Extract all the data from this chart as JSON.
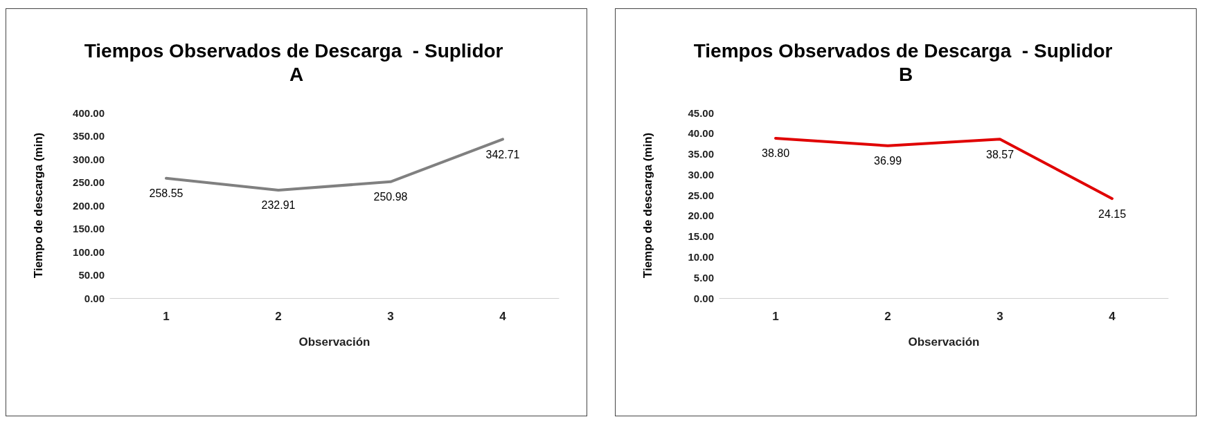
{
  "chart_data": [
    {
      "type": "line",
      "title": "Tiempos Observados de Descarga  - Suplidor A",
      "xlabel": "Observación",
      "ylabel": "Tiempo de descarga (min)",
      "categories": [
        "1",
        "2",
        "3",
        "4"
      ],
      "series": [
        {
          "color": "#808080",
          "values": [
            258.55,
            232.91,
            250.98,
            342.71
          ],
          "value_labels": [
            "258.55",
            "232.91",
            "250.98",
            "342.71"
          ]
        }
      ],
      "ylim": [
        0,
        400
      ],
      "yticks": [
        {
          "value": 0,
          "label": "0.00"
        },
        {
          "value": 50,
          "label": "50.00"
        },
        {
          "value": 100,
          "label": "100.00"
        },
        {
          "value": 150,
          "label": "150.00"
        },
        {
          "value": 200,
          "label": "200.00"
        },
        {
          "value": 250,
          "label": "250.00"
        },
        {
          "value": 300,
          "label": "300.00"
        },
        {
          "value": 350,
          "label": "350.00"
        },
        {
          "value": 400,
          "label": "400.00"
        }
      ],
      "grid": false,
      "marker": "none",
      "line_style": "solid"
    },
    {
      "type": "line",
      "title": "Tiempos Observados de Descarga  - Suplidor B",
      "xlabel": "Observación",
      "ylabel": "Tiempo de descarga (min)",
      "categories": [
        "1",
        "2",
        "3",
        "4"
      ],
      "series": [
        {
          "color": "#e00000",
          "values": [
            38.8,
            36.99,
            38.57,
            24.15
          ],
          "value_labels": [
            "38.80",
            "36.99",
            "38.57",
            "24.15"
          ]
        }
      ],
      "ylim": [
        0,
        45
      ],
      "yticks": [
        {
          "value": 0,
          "label": "0.00"
        },
        {
          "value": 5,
          "label": "5.00"
        },
        {
          "value": 10,
          "label": "10.00"
        },
        {
          "value": 15,
          "label": "15.00"
        },
        {
          "value": 20,
          "label": "20.00"
        },
        {
          "value": 25,
          "label": "25.00"
        },
        {
          "value": 30,
          "label": "30.00"
        },
        {
          "value": 35,
          "label": "35.00"
        },
        {
          "value": 40,
          "label": "40.00"
        },
        {
          "value": 45,
          "label": "45.00"
        }
      ],
      "grid": false,
      "marker": "none",
      "line_style": "solid"
    }
  ]
}
